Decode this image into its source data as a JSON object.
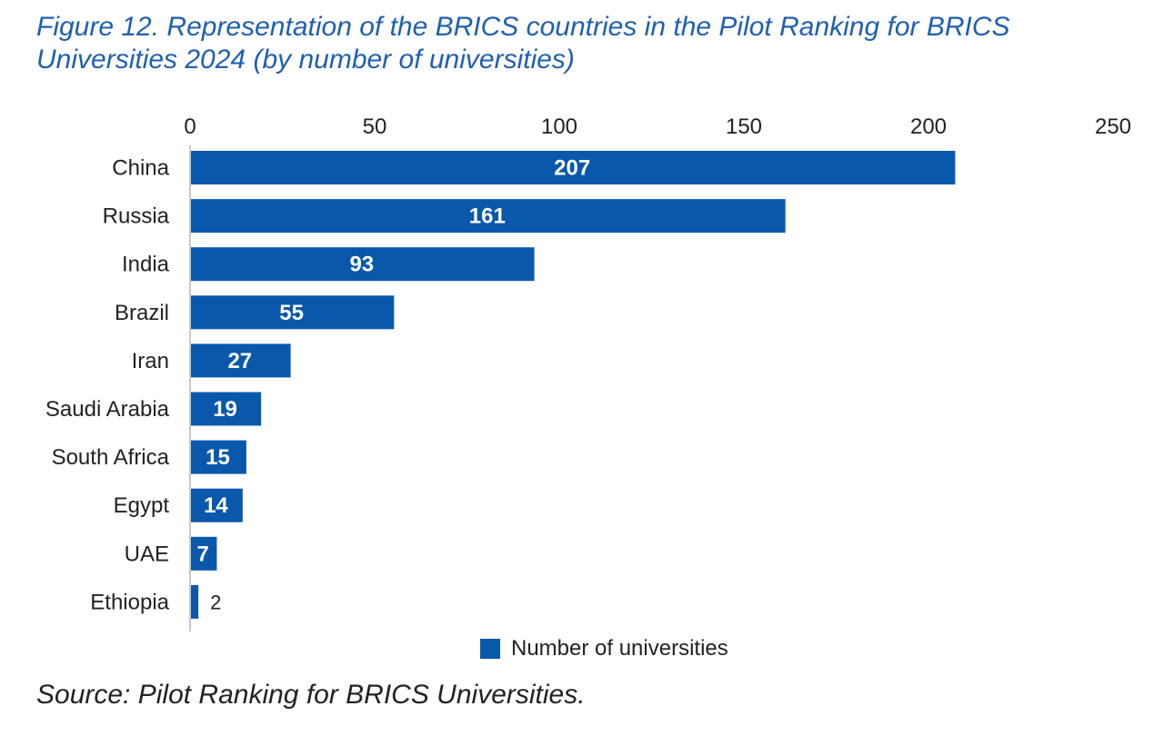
{
  "figure": {
    "title": "Figure 12. Representation of the BRICS countries in the Pilot Ranking for BRICS Universities 2024 (by number of universities)",
    "source": "Source: Pilot Ranking for BRICS Universities."
  },
  "colors": {
    "bar": "#0a58ab",
    "title": "#1f5fb0",
    "axis": "#c8c8c8"
  },
  "chart_data": {
    "type": "bar",
    "orientation": "horizontal",
    "categories": [
      "China",
      "Russia",
      "India",
      "Brazil",
      "Iran",
      "Saudi Arabia",
      "South Africa",
      "Egypt",
      "UAE",
      "Ethiopia"
    ],
    "series": [
      {
        "name": "Number of universities",
        "values": [
          207,
          161,
          93,
          55,
          27,
          19,
          15,
          14,
          7,
          2
        ]
      }
    ],
    "data_labels": [
      "207",
      "161",
      "93",
      "55",
      "27",
      "19",
      "15",
      "14",
      "7",
      "2"
    ],
    "xlim": [
      0,
      250
    ],
    "x_ticks": [
      "0",
      "50",
      "100",
      "150",
      "200",
      "250"
    ],
    "x_axis_position": "top",
    "grid": false,
    "legend": "bottom"
  }
}
